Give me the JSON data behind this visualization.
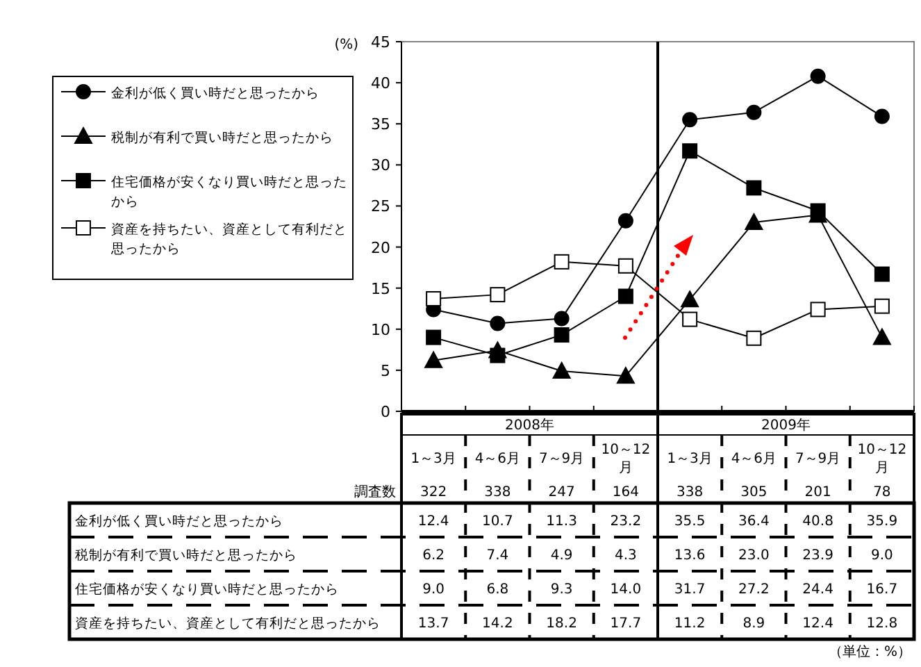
{
  "chart_data": {
    "type": "line",
    "ylabel": "(%)",
    "ylim": [
      0,
      45
    ],
    "yticks": [
      0,
      5,
      10,
      15,
      20,
      25,
      30,
      35,
      40,
      45
    ],
    "legend": "left",
    "line_style": "solid",
    "categories": [
      "1～3月",
      "4～6月",
      "7～9月",
      "10～12月",
      "1～3月",
      "4～6月",
      "7～9月",
      "10～12月"
    ],
    "series": [
      {
        "name": "金利が低く買い時だと思ったから",
        "color": "#000000",
        "marker": "circle",
        "values": [
          12.4,
          10.7,
          11.3,
          23.2,
          35.5,
          36.4,
          40.8,
          35.9
        ],
        "value_labels": [
          "12.4",
          "10.7",
          "11.3",
          "23.2",
          "35.5",
          "36.4",
          "40.8",
          "35.9"
        ]
      },
      {
        "name": "税制が有利で買い時だと思ったから",
        "color": "#000000",
        "marker": "triangle",
        "values": [
          6.2,
          7.4,
          4.9,
          4.3,
          13.6,
          23.0,
          23.9,
          9.0
        ],
        "value_labels": [
          "6.2",
          "7.4",
          "4.9",
          "4.3",
          "13.6",
          "23.0",
          "23.9",
          "9.0"
        ]
      },
      {
        "name": "住宅価格が安くなり買い時だと思ったから",
        "color": "#000000",
        "marker": "square",
        "values": [
          9.0,
          6.8,
          9.3,
          14.0,
          31.7,
          27.2,
          24.4,
          16.7
        ],
        "value_labels": [
          "9.0",
          "6.8",
          "9.3",
          "14.0",
          "31.7",
          "27.2",
          "24.4",
          "16.7"
        ]
      },
      {
        "name": "資産を持ちたい、資産として有利だと思ったから",
        "color": "#000000",
        "marker": "square",
        "values": [
          13.7,
          14.2,
          18.2,
          17.7,
          11.2,
          8.9,
          12.4,
          12.8
        ],
        "value_labels": [
          "13.7",
          "14.2",
          "18.2",
          "17.7",
          "11.2",
          "8.9",
          "12.4",
          "12.8"
        ]
      }
    ],
    "annotations": [
      "2008年",
      "2009年",
      "調査数",
      "322",
      "338",
      "247",
      "164",
      "338",
      "305",
      "201",
      "78",
      "（単位：%）"
    ]
  }
}
